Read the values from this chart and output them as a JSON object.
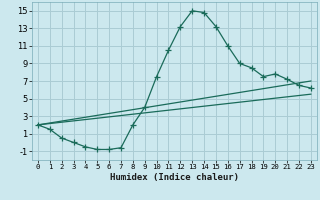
{
  "xlabel": "Humidex (Indice chaleur)",
  "bg_color": "#cce8ee",
  "grid_color": "#aaccd4",
  "line_color": "#1a6b5a",
  "xlim": [
    -0.5,
    23.5
  ],
  "ylim": [
    -2,
    16
  ],
  "xticks": [
    0,
    1,
    2,
    3,
    4,
    5,
    6,
    7,
    8,
    9,
    10,
    11,
    12,
    13,
    14,
    15,
    16,
    17,
    18,
    19,
    20,
    21,
    22,
    23
  ],
  "yticks": [
    -1,
    1,
    3,
    5,
    7,
    9,
    11,
    13,
    15
  ],
  "curve_x": [
    0,
    1,
    2,
    3,
    4,
    5,
    6,
    7,
    8,
    9,
    10,
    11,
    12,
    13,
    14,
    15,
    16,
    17,
    18,
    19,
    20,
    21,
    22,
    23
  ],
  "curve_y": [
    2.0,
    1.5,
    0.5,
    0.0,
    -0.5,
    -0.8,
    -0.8,
    -0.6,
    2.0,
    4.0,
    7.5,
    10.5,
    13.2,
    15.0,
    14.8,
    13.2,
    11.0,
    9.0,
    8.5,
    7.5,
    7.8,
    7.2,
    6.5,
    6.2
  ],
  "line2_x": [
    0,
    23
  ],
  "line2_y": [
    2.0,
    7.0
  ],
  "line3_x": [
    0,
    23
  ],
  "line3_y": [
    2.0,
    5.5
  ]
}
